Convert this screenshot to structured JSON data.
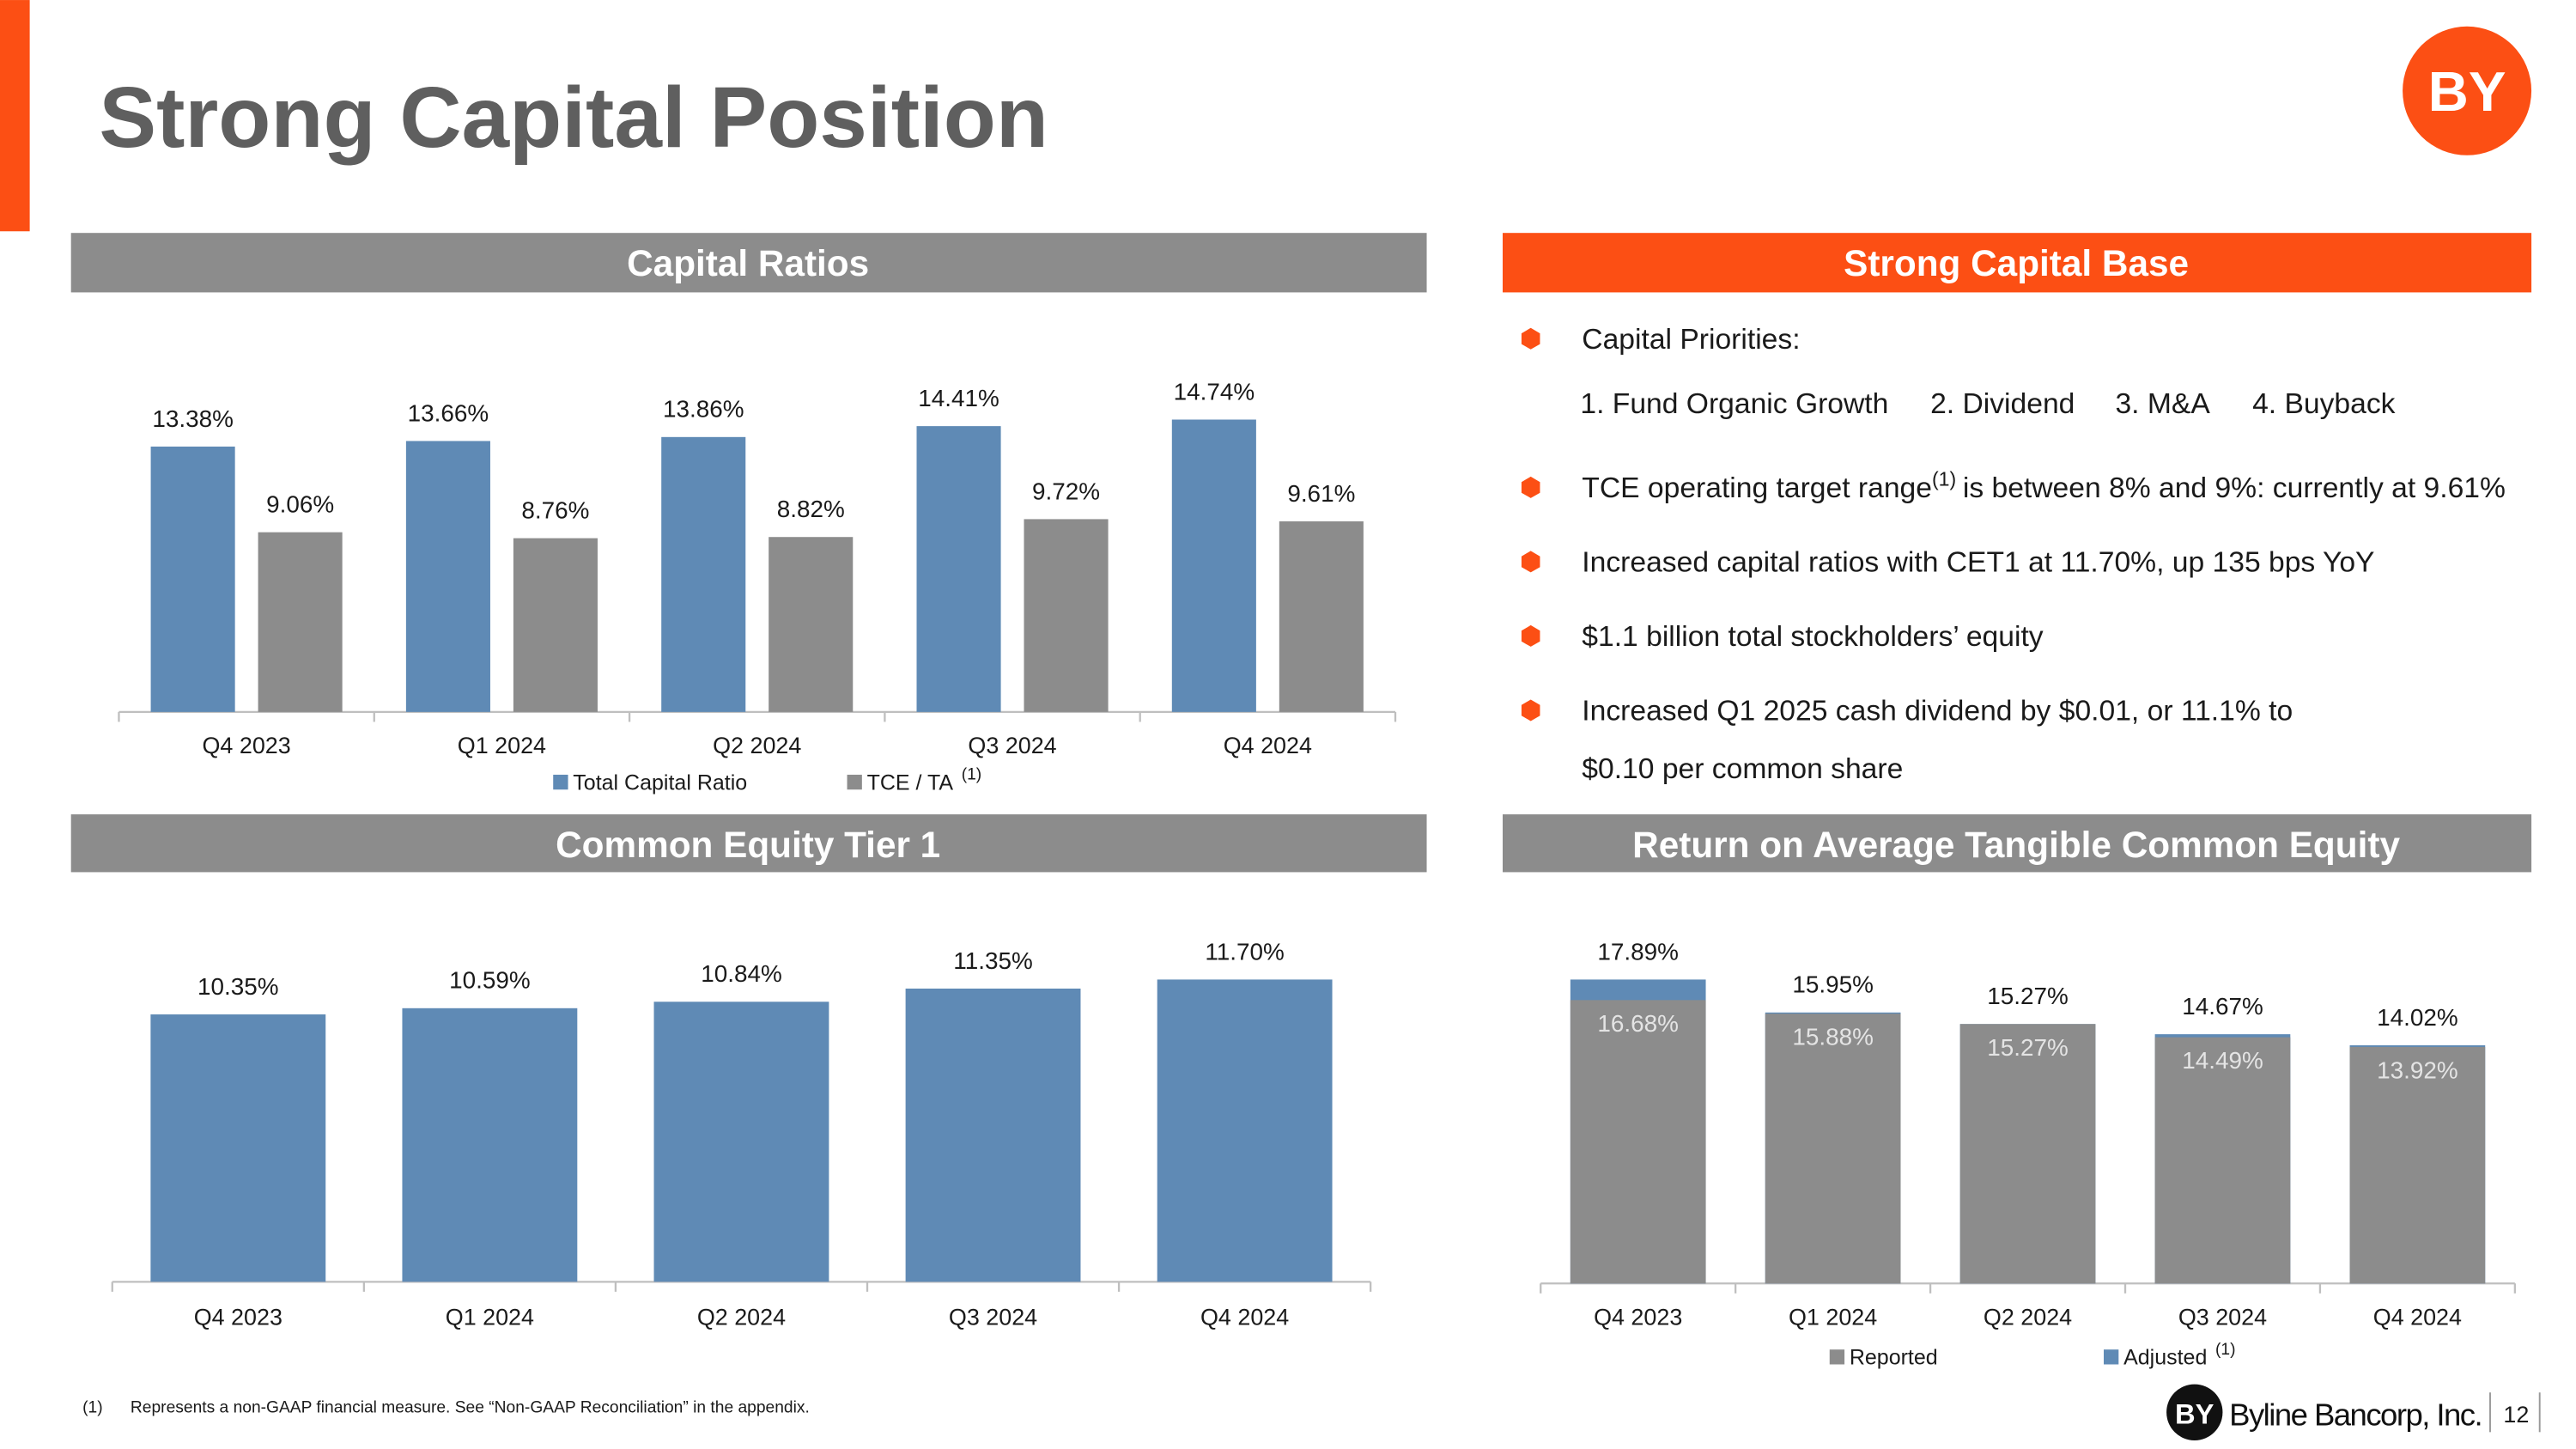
{
  "title": "Strong Capital Position",
  "logo": "BY",
  "sections": [
    "Capital Ratios",
    "Strong Capital Base",
    "Common Equity Tier 1",
    "Return on Average Tangible Common Equity"
  ],
  "capital_priorities": {
    "label": "Capital Priorities:",
    "items": [
      "1. Fund Organic Growth",
      "2. Dividend",
      "3. M&A",
      "4. Buyback"
    ]
  },
  "tce_bullet": {
    "before": "TCE operating target range",
    "note": "(1)",
    "after": "is between 8% and 9%: currently at 9.61%"
  },
  "bullets": [
    "Increased capital ratios with CET1 at 11.70%, up 135 bps YoY",
    "$1.1 billion total stockholders’ equity"
  ],
  "dividend_bullet": [
    "Increased Q1 2025 cash dividend by $0.01, or 11.1% to",
    "$0.10 per common share"
  ],
  "footnote": {
    "marker": "(1)",
    "text": "Represents a non-GAAP financial measure.  See “Non-GAAP Reconciliation” in the appendix."
  },
  "footer": {
    "company": "Byline Bancorp, Inc.",
    "page": "12"
  },
  "chart_data": [
    {
      "type": "bar",
      "categories": [
        "Q4 2023",
        "Q1 2024",
        "Q2 2024",
        "Q3 2024",
        "Q4 2024"
      ],
      "series": [
        {
          "name": "Total Capital Ratio",
          "color": "#5f8ab5",
          "values": [
            13.38,
            13.66,
            13.86,
            14.41,
            14.74
          ],
          "value_labels": [
            "13.38%",
            "13.66%",
            "13.86%",
            "14.41%",
            "14.74%"
          ]
        },
        {
          "name": "TCE / TA",
          "note": "(1)",
          "color": "#8c8c8c",
          "values": [
            9.06,
            8.76,
            8.82,
            9.72,
            9.61
          ],
          "value_labels": [
            "9.06%",
            "8.76%",
            "8.82%",
            "9.72%",
            "9.61%"
          ]
        }
      ]
    },
    {
      "type": "bar",
      "categories": [
        "Q4 2023",
        "Q1 2024",
        "Q2 2024",
        "Q3 2024",
        "Q4 2024"
      ],
      "series": [
        {
          "color": "#5f8ab5",
          "values": [
            10.35,
            10.59,
            10.84,
            11.35,
            11.7
          ],
          "value_labels": [
            "10.35%",
            "10.59%",
            "10.84%",
            "11.35%",
            "11.70%"
          ]
        }
      ]
    },
    {
      "type": "bar",
      "overlap": true,
      "categories": [
        "Q4 2023",
        "Q1 2024",
        "Q2 2024",
        "Q3 2024",
        "Q4 2024"
      ],
      "series": [
        {
          "name": "Reported",
          "color": "#8c8c8c",
          "values": [
            16.68,
            15.88,
            15.27,
            14.49,
            13.92
          ],
          "value_labels": [
            "16.68%",
            "15.88%",
            "15.27%",
            "14.49%",
            "13.92%"
          ]
        },
        {
          "name": "Adjusted",
          "note": "(1)",
          "color": "#5f8ab5",
          "values": [
            17.89,
            15.95,
            15.27,
            14.67,
            14.02
          ],
          "value_labels": [
            "17.89%",
            "15.95%",
            "15.27%",
            "14.67%",
            "14.02%"
          ]
        }
      ]
    }
  ]
}
